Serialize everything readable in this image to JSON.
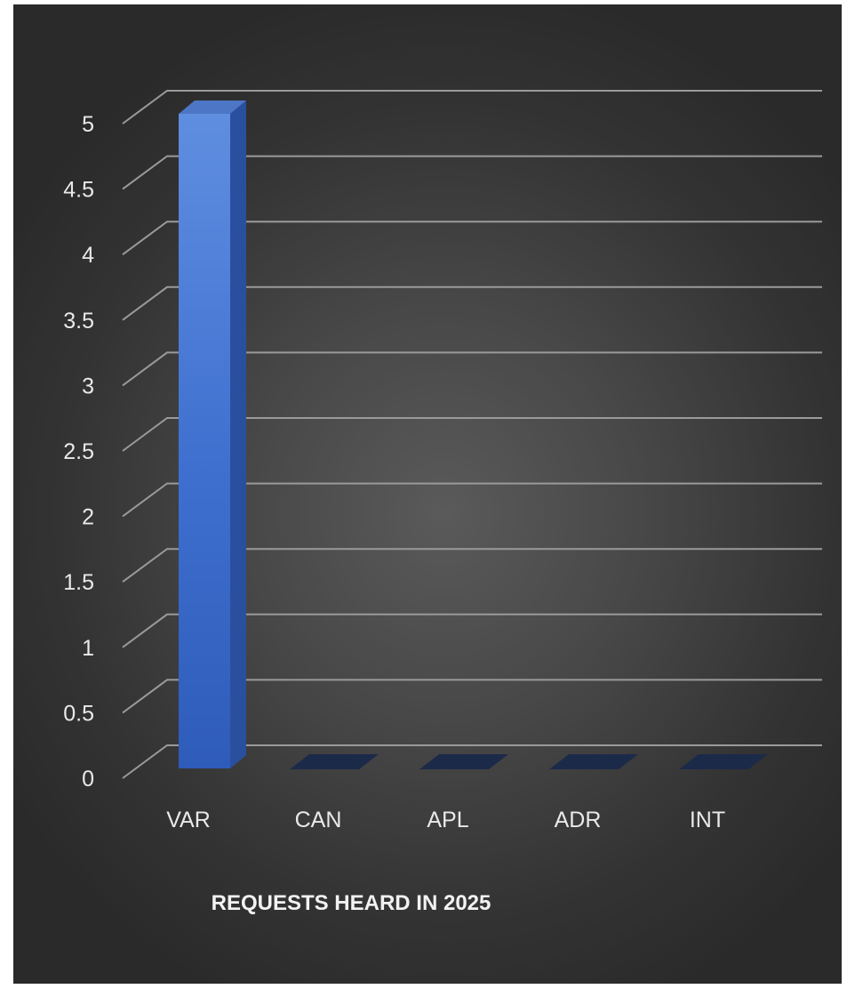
{
  "chart_data": {
    "type": "bar",
    "style": "3d-column",
    "title": "REQUESTS HEARD IN 2025",
    "xlabel": "",
    "ylabel": "",
    "categories": [
      "VAR",
      "CAN",
      "APL",
      "ADR",
      "INT"
    ],
    "values": [
      5,
      0,
      0,
      0,
      0
    ],
    "ylim": [
      0,
      5
    ],
    "yticks": [
      "0",
      "0.5",
      "1",
      "1.5",
      "2",
      "2.5",
      "3",
      "3.5",
      "4",
      "4.5",
      "5"
    ],
    "grid": true,
    "legend": "none",
    "colors": {
      "bar_front": "#3f6fcc",
      "bar_side": "#2a4f9e",
      "bar_top": "#4d76c6",
      "zero_bar": "#1c2a4a",
      "gridline": "#9a9a9a",
      "background": "#3d3d3d",
      "text": "#e9e9e9"
    }
  }
}
